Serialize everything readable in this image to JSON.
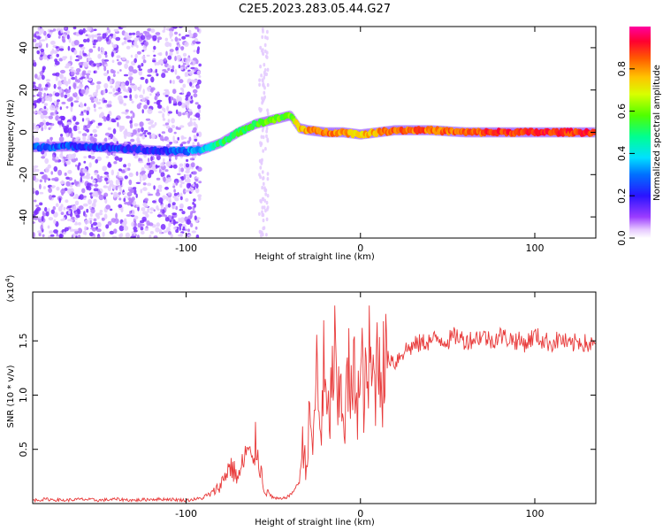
{
  "title": "C2E5.2023.283.05.44.G27",
  "spectrogram": {
    "xlabel": "Height of straight line (km)",
    "ylabel": "Frequency (Hz)",
    "xlim": [
      -188,
      135
    ],
    "ylim": [
      -50,
      50
    ],
    "xticks": [
      -100,
      0,
      100
    ],
    "xtick_labels": [
      "-100",
      "0",
      "100"
    ],
    "yticks": [
      -40,
      -20,
      0,
      20,
      40
    ],
    "ytick_labels": [
      "-40",
      "-20",
      "0",
      "20",
      "40"
    ],
    "colorbar_label": "Normalized spectral amplitude",
    "colorbar_ticks": [
      0.0,
      0.2,
      0.4,
      0.6,
      0.8
    ],
    "colorbar_tick_labels": [
      "0.0",
      "0.2",
      "0.4",
      "0.6",
      "0.8"
    ],
    "ridge": {
      "x": [
        -188,
        -160,
        -140,
        -120,
        -110,
        -100,
        -90,
        -80,
        -70,
        -60,
        -50,
        -40,
        -35,
        -30,
        -20,
        -10,
        0,
        10,
        20,
        40,
        60,
        80,
        100,
        120,
        135
      ],
      "y": [
        -7,
        -6.5,
        -7.5,
        -8.5,
        -9,
        -9,
        -8,
        -5,
        0,
        4,
        6,
        8,
        2,
        1,
        0,
        0,
        -1,
        0,
        1,
        1,
        0,
        0,
        0,
        0,
        0
      ],
      "amplitude": [
        0.35,
        0.3,
        0.3,
        0.25,
        0.3,
        0.35,
        0.45,
        0.55,
        0.6,
        0.6,
        0.65,
        0.65,
        0.8,
        0.85,
        0.9,
        0.85,
        0.8,
        0.85,
        0.9,
        0.9,
        0.9,
        0.95,
        0.95,
        0.95,
        0.95
      ]
    }
  },
  "chart_data": {
    "type": "line",
    "title": "C2E5.2023.283.05.44.G27",
    "xlabel": "Height of straight line (km)",
    "ylabel": "SNR (10 * v/v)",
    "multiplier_label": "(x10",
    "multiplier_exponent": "4",
    "xlim": [
      -188,
      135
    ],
    "ylim": [
      0,
      1.95
    ],
    "xticks": [
      -100,
      0,
      100
    ],
    "xtick_labels": [
      "-100",
      "0",
      "100"
    ],
    "yticks": [
      0.5,
      1.0,
      1.5
    ],
    "ytick_labels": [
      "0.5",
      "1.0",
      "1.5"
    ],
    "line_color": "#e83a3a",
    "series": [
      {
        "x": [
          -188,
          -180,
          -170,
          -160,
          -150,
          -140,
          -130,
          -120,
          -110,
          -100,
          -90,
          -85,
          -80,
          -75,
          -70,
          -65,
          -62,
          -60,
          -57,
          -55,
          -50,
          -45,
          -40,
          -35,
          -33,
          -31,
          -29,
          -27,
          -25,
          -23,
          -21,
          -19,
          -17,
          -15,
          -13,
          -11,
          -9,
          -7,
          -5,
          -3,
          -1,
          1,
          3,
          5,
          7,
          9,
          11,
          13,
          15,
          17,
          20,
          23,
          26,
          30,
          35,
          40,
          45,
          50,
          55,
          60,
          65,
          70,
          75,
          80,
          85,
          90,
          95,
          100,
          105,
          110,
          115,
          120,
          125,
          130,
          135
        ],
        "values": [
          0.03,
          0.04,
          0.03,
          0.04,
          0.03,
          0.04,
          0.03,
          0.04,
          0.04,
          0.03,
          0.05,
          0.08,
          0.15,
          0.3,
          0.2,
          0.42,
          0.3,
          0.48,
          0.25,
          0.1,
          0.05,
          0.04,
          0.08,
          0.2,
          0.55,
          0.35,
          0.8,
          0.5,
          1.3,
          0.6,
          1.2,
          0.7,
          0.95,
          1.4,
          0.8,
          1.1,
          0.75,
          1.2,
          0.9,
          1.25,
          0.95,
          1.2,
          1.0,
          1.3,
          1.1,
          1.25,
          1.45,
          1.2,
          1.3,
          1.35,
          1.3,
          1.38,
          1.42,
          1.45,
          1.48,
          1.5,
          1.52,
          1.5,
          1.55,
          1.5,
          1.52,
          1.55,
          1.5,
          1.55,
          1.52,
          1.5,
          1.48,
          1.55,
          1.5,
          1.48,
          1.52,
          1.45,
          1.5,
          1.47,
          1.45
        ]
      }
    ]
  }
}
